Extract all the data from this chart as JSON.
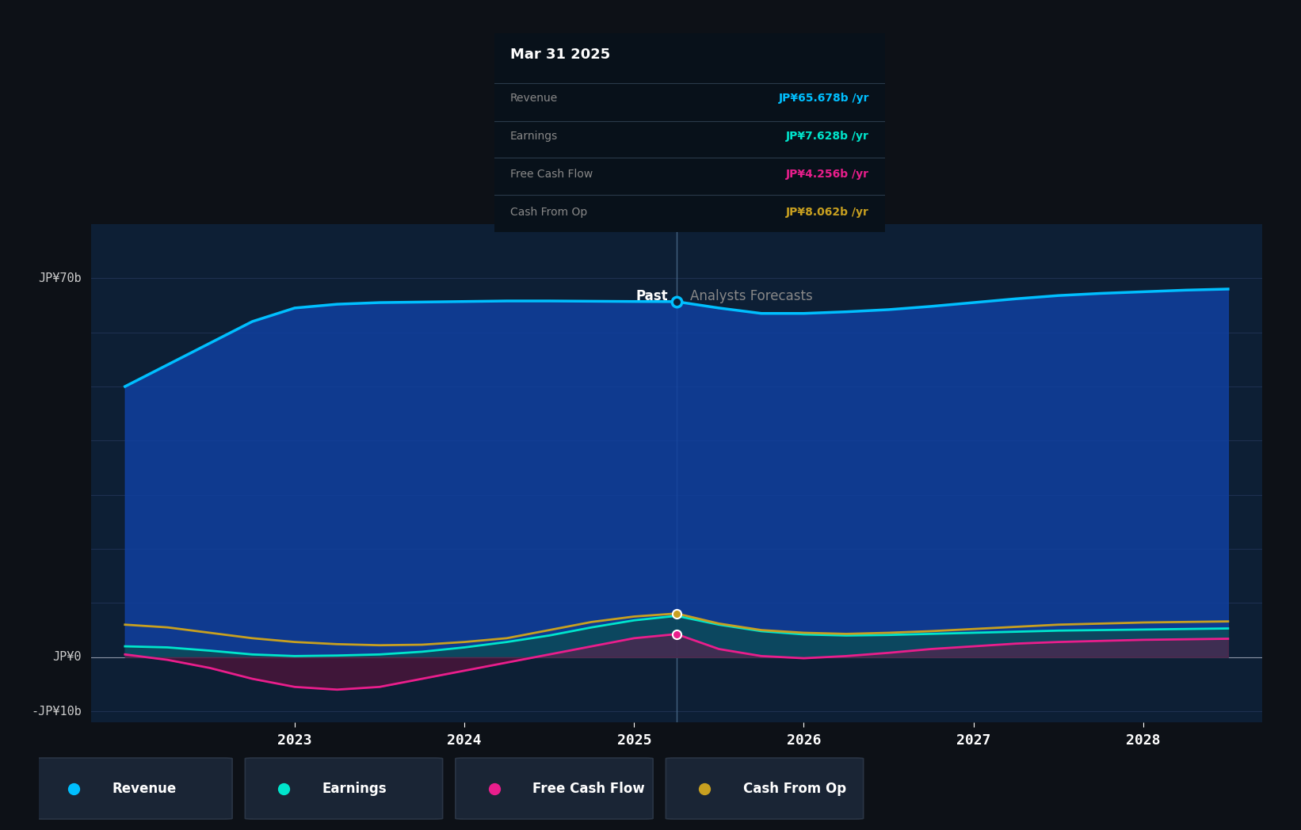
{
  "bg_color": "#0d1117",
  "plot_bg_color": "#0d1f35",
  "divider_x": 2025.25,
  "tooltip_date": "Mar 31 2025",
  "tooltip_revenue": "JP¥65.678b",
  "tooltip_earnings": "JP¥7.628b",
  "tooltip_fcf": "JP¥4.256b",
  "tooltip_cashop": "JP¥8.062b",
  "tooltip_revenue_color": "#00bfff",
  "tooltip_earnings_color": "#00e5cc",
  "tooltip_fcf_color": "#e91e8c",
  "tooltip_cashop_color": "#c8a020",
  "revenue_color": "#00bfff",
  "earnings_color": "#00e5cc",
  "fcf_color": "#e91e8c",
  "cashop_color": "#c8a020",
  "revenue_fill_alpha": 0.7,
  "earnings_fill_alpha": 0.4,
  "ylim": [
    -12,
    80
  ],
  "xlim": [
    2021.8,
    2028.7
  ],
  "revenue": {
    "x": [
      2022.0,
      2022.25,
      2022.5,
      2022.75,
      2023.0,
      2023.25,
      2023.5,
      2023.75,
      2024.0,
      2024.25,
      2024.5,
      2024.75,
      2025.0,
      2025.25,
      2025.5,
      2025.75,
      2026.0,
      2026.25,
      2026.5,
      2026.75,
      2027.0,
      2027.25,
      2027.5,
      2027.75,
      2028.0,
      2028.25,
      2028.5
    ],
    "y": [
      50,
      54,
      58,
      62,
      64.5,
      65.2,
      65.5,
      65.6,
      65.7,
      65.8,
      65.8,
      65.75,
      65.7,
      65.678,
      64.5,
      63.5,
      63.5,
      63.8,
      64.2,
      64.8,
      65.5,
      66.2,
      66.8,
      67.2,
      67.5,
      67.8,
      68.0
    ]
  },
  "earnings": {
    "x": [
      2022.0,
      2022.25,
      2022.5,
      2022.75,
      2023.0,
      2023.25,
      2023.5,
      2023.75,
      2024.0,
      2024.25,
      2024.5,
      2024.75,
      2025.0,
      2025.25,
      2025.5,
      2025.75,
      2026.0,
      2026.25,
      2026.5,
      2026.75,
      2027.0,
      2027.25,
      2027.5,
      2027.75,
      2028.0,
      2028.25,
      2028.5
    ],
    "y": [
      2.0,
      1.8,
      1.2,
      0.5,
      0.2,
      0.3,
      0.5,
      1.0,
      1.8,
      2.8,
      4.0,
      5.5,
      6.8,
      7.628,
      6.0,
      4.8,
      4.2,
      4.0,
      4.1,
      4.3,
      4.5,
      4.7,
      4.9,
      5.0,
      5.1,
      5.2,
      5.3
    ]
  },
  "fcf": {
    "x": [
      2022.0,
      2022.25,
      2022.5,
      2022.75,
      2023.0,
      2023.25,
      2023.5,
      2023.75,
      2024.0,
      2024.25,
      2024.5,
      2024.75,
      2025.0,
      2025.25,
      2025.5,
      2025.75,
      2026.0,
      2026.25,
      2026.5,
      2026.75,
      2027.0,
      2027.25,
      2027.5,
      2027.75,
      2028.0,
      2028.25,
      2028.5
    ],
    "y": [
      0.5,
      -0.5,
      -2.0,
      -4.0,
      -5.5,
      -6.0,
      -5.5,
      -4.0,
      -2.5,
      -1.0,
      0.5,
      2.0,
      3.5,
      4.256,
      1.5,
      0.2,
      -0.2,
      0.2,
      0.8,
      1.5,
      2.0,
      2.5,
      2.8,
      3.0,
      3.2,
      3.3,
      3.4
    ]
  },
  "cashop": {
    "x": [
      2022.0,
      2022.25,
      2022.5,
      2022.75,
      2023.0,
      2023.25,
      2023.5,
      2023.75,
      2024.0,
      2024.25,
      2024.5,
      2024.75,
      2025.0,
      2025.25,
      2025.5,
      2025.75,
      2026.0,
      2026.25,
      2026.5,
      2026.75,
      2027.0,
      2027.25,
      2027.5,
      2027.75,
      2028.0,
      2028.25,
      2028.5
    ],
    "y": [
      6.0,
      5.5,
      4.5,
      3.5,
      2.8,
      2.4,
      2.2,
      2.3,
      2.8,
      3.5,
      5.0,
      6.5,
      7.5,
      8.062,
      6.2,
      5.0,
      4.5,
      4.3,
      4.5,
      4.8,
      5.2,
      5.6,
      6.0,
      6.2,
      6.4,
      6.5,
      6.6
    ]
  },
  "legend_items": [
    {
      "label": "Revenue",
      "color": "#00bfff"
    },
    {
      "label": "Earnings",
      "color": "#00e5cc"
    },
    {
      "label": "Free Cash Flow",
      "color": "#e91e8c"
    },
    {
      "label": "Cash From Op",
      "color": "#c8a020"
    }
  ]
}
